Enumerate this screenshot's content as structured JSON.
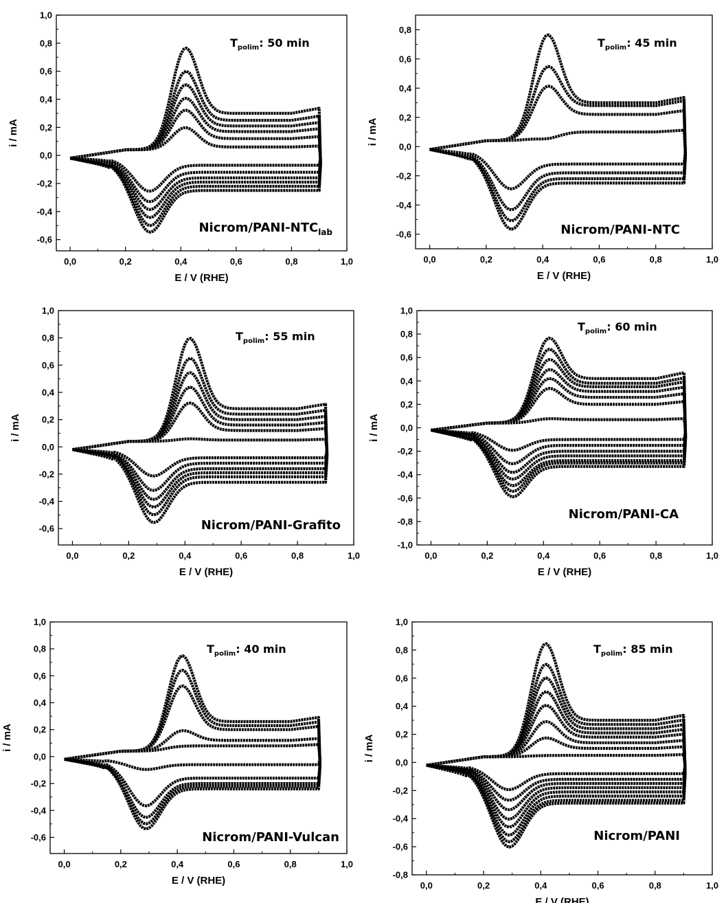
{
  "chart_data": [
    {
      "type": "line",
      "xlabel": "E / V (RHE)",
      "ylabel": "i / mA",
      "xlim": [
        -0.05,
        1.0
      ],
      "ylim": [
        -0.68,
        1.0
      ],
      "xticks": [
        "0,0",
        "0,2",
        "0,4",
        "0,6",
        "0,8",
        "1,0"
      ],
      "yticks": [
        "-0,6",
        "-0,4",
        "-0,2",
        "0,0",
        "0,2",
        "0,4",
        "0,6",
        "0,8",
        "1,0"
      ],
      "annotation": {
        "prefix": "T",
        "subscript": "polim",
        "text": ": 50 min"
      },
      "label": {
        "main": "Nicrom/PANI-NTC",
        "subscript": "lab"
      },
      "cycles": [
        {
          "peak_anodic": 0.2,
          "peak_cathodic": -0.26,
          "plateau_upper": 0.06,
          "plateau_lower": -0.07
        },
        {
          "peak_anodic": 0.33,
          "peak_cathodic": -0.34,
          "plateau_upper": 0.12,
          "plateau_lower": -0.12
        },
        {
          "peak_anodic": 0.42,
          "peak_cathodic": -0.4,
          "plateau_upper": 0.17,
          "plateau_lower": -0.16
        },
        {
          "peak_anodic": 0.52,
          "peak_cathodic": -0.46,
          "plateau_upper": 0.21,
          "plateau_lower": -0.19
        },
        {
          "peak_anodic": 0.62,
          "peak_cathodic": -0.52,
          "plateau_upper": 0.25,
          "plateau_lower": -0.22
        },
        {
          "peak_anodic": 0.79,
          "peak_cathodic": -0.57,
          "plateau_upper": 0.3,
          "plateau_lower": -0.25
        }
      ]
    },
    {
      "type": "line",
      "xlabel": "E / V (RHE)",
      "ylabel": "i / mA",
      "xlim": [
        -0.05,
        1.0
      ],
      "ylim": [
        -0.7,
        0.9
      ],
      "xticks": [
        "0,0",
        "0,2",
        "0,4",
        "0,6",
        "0,8",
        "1,0"
      ],
      "yticks": [
        "-0,6",
        "-0,4",
        "-0,2",
        "0,0",
        "0,2",
        "0,4",
        "0,6",
        "0,8"
      ],
      "annotation": {
        "prefix": "T",
        "subscript": "polim",
        "text": ": 45 min"
      },
      "label": {
        "main": "Nicrom/PANI-NTC",
        "subscript": ""
      },
      "cycles": [
        {
          "peak_anodic": 0.06,
          "peak_cathodic": -0.3,
          "plateau_upper": 0.1,
          "plateau_lower": -0.12
        },
        {
          "peak_anodic": 0.43,
          "peak_cathodic": -0.45,
          "plateau_upper": 0.22,
          "plateau_lower": -0.18
        },
        {
          "peak_anodic": 0.57,
          "peak_cathodic": -0.53,
          "plateau_upper": 0.28,
          "plateau_lower": -0.22
        },
        {
          "peak_anodic": 0.79,
          "peak_cathodic": -0.59,
          "plateau_upper": 0.3,
          "plateau_lower": -0.25
        }
      ]
    },
    {
      "type": "line",
      "xlabel": "E / V (RHE)",
      "ylabel": "i / mA",
      "xlim": [
        -0.05,
        1.0
      ],
      "ylim": [
        -0.72,
        1.0
      ],
      "xticks": [
        "0,0",
        "0,2",
        "0,4",
        "0,6",
        "0,8",
        "1,0"
      ],
      "yticks": [
        "-0,6",
        "-0,4",
        "-0,2",
        "0,0",
        "0,2",
        "0,4",
        "0,6",
        "0,8",
        "1,0"
      ],
      "annotation": {
        "prefix": "T",
        "subscript": "polim",
        "text": ": 55 min"
      },
      "label": {
        "main": "Nicrom/PANI-Grafito",
        "subscript": ""
      },
      "cycles": [
        {
          "peak_anodic": 0.06,
          "peak_cathodic": -0.22,
          "plateau_upper": 0.05,
          "plateau_lower": -0.08
        },
        {
          "peak_anodic": 0.33,
          "peak_cathodic": -0.33,
          "plateau_upper": 0.12,
          "plateau_lower": -0.12
        },
        {
          "peak_anodic": 0.45,
          "peak_cathodic": -0.4,
          "plateau_upper": 0.16,
          "plateau_lower": -0.16
        },
        {
          "peak_anodic": 0.56,
          "peak_cathodic": -0.46,
          "plateau_upper": 0.2,
          "plateau_lower": -0.19
        },
        {
          "peak_anodic": 0.67,
          "peak_cathodic": -0.52,
          "plateau_upper": 0.24,
          "plateau_lower": -0.22
        },
        {
          "peak_anodic": 0.82,
          "peak_cathodic": -0.58,
          "plateau_upper": 0.28,
          "plateau_lower": -0.26
        }
      ]
    },
    {
      "type": "line",
      "xlabel": "E / V (RHE)",
      "ylabel": "i / mA",
      "xlim": [
        -0.05,
        1.0
      ],
      "ylim": [
        -1.0,
        1.0
      ],
      "xticks": [
        "0,0",
        "0,2",
        "0,4",
        "0,6",
        "0,8",
        "1,0"
      ],
      "yticks": [
        "-1,0",
        "-0,8",
        "-0,6",
        "-0,4",
        "-0,2",
        "0,0",
        "0,2",
        "0,4",
        "0,6",
        "0,8",
        "1,0"
      ],
      "annotation": {
        "prefix": "T",
        "subscript": "polim",
        "text": ": 60 min"
      },
      "label": {
        "main": "Nicrom/PANI-CA",
        "subscript": ""
      },
      "cycles": [
        {
          "peak_anodic": 0.08,
          "peak_cathodic": -0.2,
          "plateau_upper": 0.07,
          "plateau_lower": -0.1
        },
        {
          "peak_anodic": 0.35,
          "peak_cathodic": -0.32,
          "plateau_upper": 0.2,
          "plateau_lower": -0.15
        },
        {
          "peak_anodic": 0.44,
          "peak_cathodic": -0.4,
          "plateau_upper": 0.26,
          "plateau_lower": -0.2
        },
        {
          "peak_anodic": 0.52,
          "peak_cathodic": -0.46,
          "plateau_upper": 0.31,
          "plateau_lower": -0.24
        },
        {
          "peak_anodic": 0.61,
          "peak_cathodic": -0.52,
          "plateau_upper": 0.35,
          "plateau_lower": -0.28
        },
        {
          "peak_anodic": 0.7,
          "peak_cathodic": -0.57,
          "plateau_upper": 0.38,
          "plateau_lower": -0.3
        },
        {
          "peak_anodic": 0.8,
          "peak_cathodic": -0.62,
          "plateau_upper": 0.42,
          "plateau_lower": -0.33
        }
      ]
    },
    {
      "type": "line",
      "xlabel": "E / V (RHE)",
      "ylabel": "i / mA",
      "xlim": [
        -0.05,
        1.0
      ],
      "ylim": [
        -0.72,
        1.0
      ],
      "xticks": [
        "0,0",
        "0,2",
        "0,4",
        "0,6",
        "0,8",
        "1,0"
      ],
      "yticks": [
        "-0,6",
        "-0,4",
        "-0,2",
        "0,0",
        "0,2",
        "0,4",
        "0,6",
        "0,8",
        "1,0"
      ],
      "annotation": {
        "prefix": "T",
        "subscript": "polim",
        "text": ": 40 min"
      },
      "label": {
        "main": "Nicrom/PANI-Vulcan",
        "subscript": ""
      },
      "cycles": [
        {
          "peak_anodic": 0.08,
          "peak_cathodic": -0.1,
          "plateau_upper": 0.08,
          "plateau_lower": -0.06
        },
        {
          "peak_anodic": 0.2,
          "peak_cathodic": -0.38,
          "plateau_upper": 0.12,
          "plateau_lower": -0.16
        },
        {
          "peak_anodic": 0.54,
          "peak_cathodic": -0.47,
          "plateau_upper": 0.2,
          "plateau_lower": -0.2
        },
        {
          "peak_anodic": 0.66,
          "peak_cathodic": -0.52,
          "plateau_upper": 0.23,
          "plateau_lower": -0.22
        },
        {
          "peak_anodic": 0.77,
          "peak_cathodic": -0.56,
          "plateau_upper": 0.26,
          "plateau_lower": -0.24
        }
      ]
    },
    {
      "type": "line",
      "xlabel": "E / V (RHE)",
      "ylabel": "i / mA",
      "xlim": [
        -0.05,
        1.0
      ],
      "ylim": [
        -0.8,
        1.0
      ],
      "xticks": [
        "0,0",
        "0,2",
        "0,4",
        "0,6",
        "0,8",
        "1,0"
      ],
      "yticks": [
        "-0,8",
        "-0,6",
        "-0,4",
        "-0,2",
        "0,0",
        "0,2",
        "0,4",
        "0,6",
        "0,8",
        "1,0"
      ],
      "annotation": {
        "prefix": "T",
        "subscript": "polim",
        "text": ": 85 min"
      },
      "label": {
        "main": "Nicrom/PANI",
        "subscript": ""
      },
      "cycles": [
        {
          "peak_anodic": 0.05,
          "peak_cathodic": -0.2,
          "plateau_upper": 0.05,
          "plateau_lower": -0.08
        },
        {
          "peak_anodic": 0.18,
          "peak_cathodic": -0.28,
          "plateau_upper": 0.1,
          "plateau_lower": -0.12
        },
        {
          "peak_anodic": 0.3,
          "peak_cathodic": -0.35,
          "plateau_upper": 0.14,
          "plateau_lower": -0.15
        },
        {
          "peak_anodic": 0.42,
          "peak_cathodic": -0.42,
          "plateau_upper": 0.18,
          "plateau_lower": -0.18
        },
        {
          "peak_anodic": 0.52,
          "peak_cathodic": -0.48,
          "plateau_upper": 0.21,
          "plateau_lower": -0.21
        },
        {
          "peak_anodic": 0.62,
          "peak_cathodic": -0.54,
          "plateau_upper": 0.24,
          "plateau_lower": -0.24
        },
        {
          "peak_anodic": 0.72,
          "peak_cathodic": -0.59,
          "plateau_upper": 0.27,
          "plateau_lower": -0.27
        },
        {
          "peak_anodic": 0.87,
          "peak_cathodic": -0.63,
          "plateau_upper": 0.3,
          "plateau_lower": -0.29
        }
      ]
    }
  ]
}
